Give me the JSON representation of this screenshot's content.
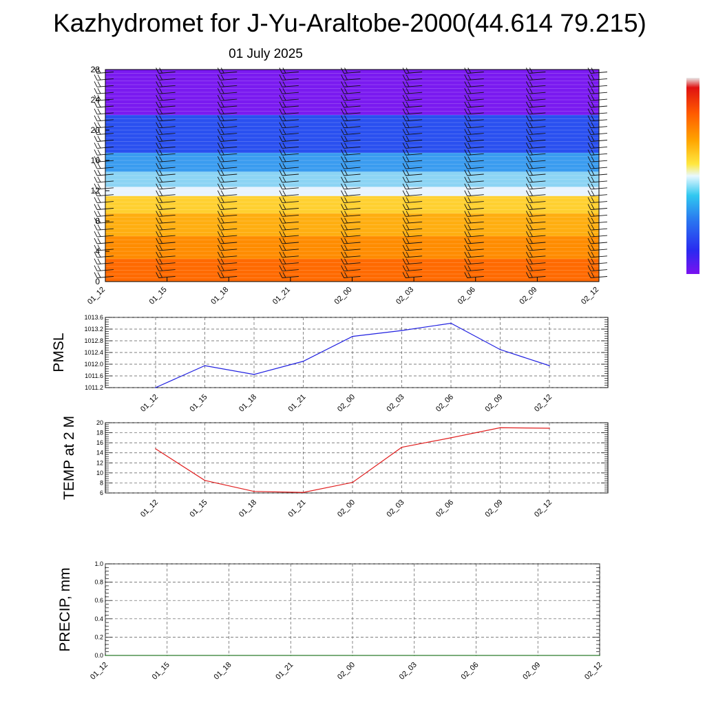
{
  "title": "Kazhydromet for J-Yu-Araltobe-2000(44.614 79.215)",
  "subtitle": "01 July 2025",
  "colors": {
    "pmsl_line": "#1f1fe0",
    "temp_line": "#e01f1f",
    "precip_line": "#2a7a2a",
    "colorbar": [
      "#7a12f0",
      "#2a2af0",
      "#2a7af0",
      "#30c8f0",
      "#ffffff",
      "#ffe840",
      "#ffa500",
      "#ff5a00",
      "#e01212",
      "#e8e8e8"
    ]
  },
  "chart_data": [
    {
      "type": "heatmap",
      "name": "time-height cross-section",
      "x_ticks": [
        "01_12",
        "01_15",
        "01_18",
        "01_21",
        "02_00",
        "02_03",
        "02_06",
        "02_09",
        "02_12"
      ],
      "y_ticks": [
        "0",
        "4",
        "8",
        "12",
        "16",
        "20",
        "24",
        "28"
      ],
      "ylim": [
        0,
        28
      ],
      "y_bands": [
        {
          "from": 0,
          "to": 3,
          "color": "#ff6a00"
        },
        {
          "from": 3,
          "to": 6,
          "color": "#ff8c00"
        },
        {
          "from": 6,
          "to": 9,
          "color": "#ffae10"
        },
        {
          "from": 9,
          "to": 11.3,
          "color": "#ffd030"
        },
        {
          "from": 11.3,
          "to": 12.5,
          "color": "#e8f4ff"
        },
        {
          "from": 12.5,
          "to": 14.5,
          "color": "#8cd4f4"
        },
        {
          "from": 14.5,
          "to": 17,
          "color": "#3a9cf0"
        },
        {
          "from": 17,
          "to": 22,
          "color": "#2a50f0"
        },
        {
          "from": 22,
          "to": 28,
          "color": "#7a1af0"
        }
      ],
      "wind_barb_columns": [
        "01_12",
        "01_15",
        "01_18",
        "01_21",
        "02_00",
        "02_03",
        "02_06",
        "02_09",
        "02_12"
      ]
    },
    {
      "type": "line",
      "ylabel": "PMSL",
      "categories": [
        "01_12",
        "01_15",
        "01_18",
        "01_21",
        "02_00",
        "02_03",
        "02_06",
        "02_09",
        "02_12"
      ],
      "values": [
        1011.2,
        1011.95,
        1011.65,
        1012.1,
        1012.95,
        1013.15,
        1013.4,
        1012.5,
        1011.95
      ],
      "ylim": [
        1011.2,
        1013.6
      ],
      "y_ticks": [
        "1011.2",
        "1011.6",
        "1012.0",
        "1012.4",
        "1012.8",
        "1013.2",
        "1013.6"
      ],
      "grid": true
    },
    {
      "type": "line",
      "ylabel": "TEMP at 2 M",
      "categories": [
        "01_12",
        "01_15",
        "01_18",
        "01_21",
        "02_00",
        "02_03",
        "02_06",
        "02_09",
        "02_12"
      ],
      "values": [
        14.8,
        8.5,
        6.3,
        6.1,
        8.1,
        15.1,
        17.0,
        19.0,
        18.9
      ],
      "ylim": [
        6,
        20
      ],
      "y_ticks": [
        "6",
        "8",
        "10",
        "12",
        "14",
        "16",
        "18",
        "20"
      ],
      "grid": true
    },
    {
      "type": "line",
      "ylabel": "PRECIP, mm",
      "categories": [
        "01_12",
        "01_15",
        "01_18",
        "01_21",
        "02_00",
        "02_03",
        "02_06",
        "02_09",
        "02_12"
      ],
      "values": [
        0,
        0,
        0,
        0,
        0,
        0,
        0,
        0,
        0
      ],
      "ylim": [
        0,
        1
      ],
      "y_ticks": [
        "0.0",
        "0.2",
        "0.4",
        "0.6",
        "0.8",
        "1.0"
      ],
      "grid": true
    }
  ]
}
